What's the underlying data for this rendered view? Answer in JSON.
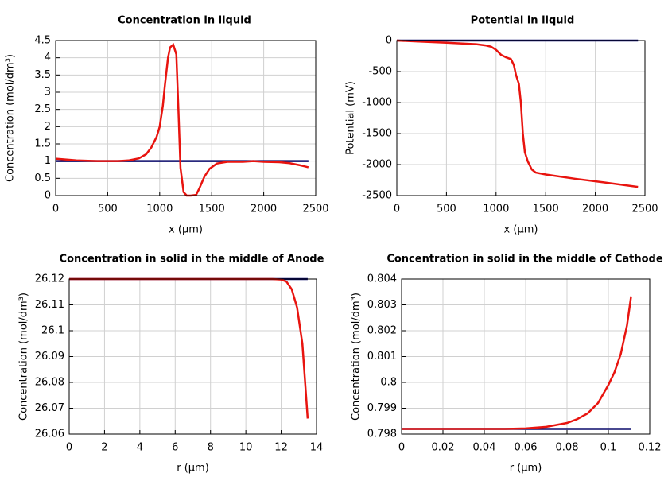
{
  "chart_data": [
    {
      "type": "line",
      "title": "Concentration in liquid",
      "x_label": "x (µm)",
      "y_label": "Concentration (mol/dm³)",
      "x": [
        0,
        200,
        400,
        600,
        700,
        800,
        870,
        920,
        970,
        1000,
        1030,
        1050,
        1080,
        1100,
        1130,
        1160,
        1180,
        1200,
        1230,
        1260,
        1300,
        1350,
        1380,
        1430,
        1480,
        1550,
        1650,
        1800,
        1900,
        2000,
        2150,
        2250,
        2350,
        2430
      ],
      "series": [
        {
          "color": "#0b0b6b",
          "values": [
            1,
            1,
            1,
            1,
            1,
            1,
            1,
            1,
            1,
            1,
            1,
            1,
            1,
            1,
            1,
            1,
            1,
            1,
            1,
            1,
            1,
            1,
            1,
            1,
            1,
            1,
            1,
            1,
            1,
            1,
            1,
            1,
            1,
            1
          ]
        },
        {
          "color": "#e8140f",
          "values": [
            1.07,
            1.02,
            1.0,
            1.0,
            1.02,
            1.08,
            1.2,
            1.4,
            1.7,
            2.0,
            2.6,
            3.2,
            4.0,
            4.3,
            4.38,
            4.1,
            2.5,
            0.8,
            0.1,
            0.0,
            0.0,
            0.02,
            0.2,
            0.55,
            0.78,
            0.93,
            0.98,
            0.98,
            1.0,
            0.98,
            0.97,
            0.94,
            0.88,
            0.82
          ]
        }
      ],
      "xlim": [
        0,
        2500
      ],
      "xticks": [
        0,
        500,
        1000,
        1500,
        2000,
        2500
      ],
      "ylim": [
        0,
        4.5
      ],
      "yticks": [
        0,
        0.5,
        1,
        1.5,
        2,
        2.5,
        3,
        3.5,
        4,
        4.5
      ],
      "grid": true
    },
    {
      "type": "line",
      "title": "Potential in liquid",
      "x_label": "x (µm)",
      "y_label": "Potential (mV)",
      "x": [
        0,
        200,
        500,
        800,
        900,
        950,
        1000,
        1050,
        1100,
        1150,
        1180,
        1200,
        1230,
        1250,
        1270,
        1290,
        1320,
        1360,
        1400,
        1500,
        1800,
        2100,
        2430
      ],
      "series": [
        {
          "color": "#0b0b6b",
          "values": [
            0,
            0,
            0,
            0,
            0,
            0,
            0,
            0,
            0,
            0,
            0,
            0,
            0,
            0,
            0,
            0,
            0,
            0,
            0,
            0,
            0,
            0,
            0
          ]
        },
        {
          "color": "#e8140f",
          "values": [
            0,
            -15,
            -35,
            -60,
            -80,
            -100,
            -150,
            -230,
            -270,
            -300,
            -400,
            -550,
            -700,
            -1000,
            -1500,
            -1800,
            -1950,
            -2080,
            -2130,
            -2160,
            -2230,
            -2290,
            -2360
          ]
        }
      ],
      "xlim": [
        0,
        2500
      ],
      "xticks": [
        0,
        500,
        1000,
        1500,
        2000,
        2500
      ],
      "ylim": [
        -2500,
        0
      ],
      "yticks": [
        -2500,
        -2000,
        -1500,
        -1000,
        -500,
        0
      ],
      "grid": true
    },
    {
      "type": "line",
      "title": "Concentration in solid in the middle of Anode",
      "x_label": "r (µm)",
      "y_label": "Concentration (mol/dm³)",
      "x": [
        0,
        11.5,
        12,
        12.3,
        12.6,
        12.9,
        13.2,
        13.5
      ],
      "series": [
        {
          "color": "#0b0b6b",
          "values": [
            26.12,
            26.12,
            26.12,
            26.12,
            26.12,
            26.12,
            26.12,
            26.12
          ]
        },
        {
          "color": "#e8140f",
          "values": [
            26.12,
            26.12,
            26.1198,
            26.119,
            26.116,
            26.109,
            26.095,
            26.066
          ]
        }
      ],
      "xlim": [
        0,
        14
      ],
      "xticks": [
        0,
        2,
        4,
        6,
        8,
        10,
        12,
        14
      ],
      "ylim": [
        26.06,
        26.12
      ],
      "yticks": [
        26.06,
        26.07,
        26.08,
        26.09,
        26.1,
        26.11,
        26.12
      ],
      "grid": true
    },
    {
      "type": "line",
      "title": "Concentration in solid in the middle of Cathode",
      "x_label": "r (µm)",
      "y_label": "Concentration (mol/dm³)",
      "x": [
        0,
        0.05,
        0.06,
        0.07,
        0.08,
        0.085,
        0.09,
        0.095,
        0.1,
        0.103,
        0.106,
        0.109,
        0.111
      ],
      "series": [
        {
          "color": "#0b0b6b",
          "values": [
            0.7982,
            0.7982,
            0.7982,
            0.7982,
            0.7982,
            0.7982,
            0.7982,
            0.7982,
            0.7982,
            0.7982,
            0.7982,
            0.7982,
            0.7982
          ]
        },
        {
          "color": "#e8140f",
          "values": [
            0.7982,
            0.7982,
            0.79822,
            0.79828,
            0.79843,
            0.79858,
            0.7988,
            0.7992,
            0.7999,
            0.8004,
            0.8011,
            0.8022,
            0.80333
          ]
        }
      ],
      "xlim": [
        0,
        0.12
      ],
      "xticks": [
        0,
        0.02,
        0.04,
        0.06,
        0.08,
        0.1,
        0.12
      ],
      "ylim": [
        0.798,
        0.804
      ],
      "yticks": [
        0.798,
        0.799,
        0.8,
        0.801,
        0.802,
        0.803,
        0.804
      ],
      "grid": true
    }
  ]
}
